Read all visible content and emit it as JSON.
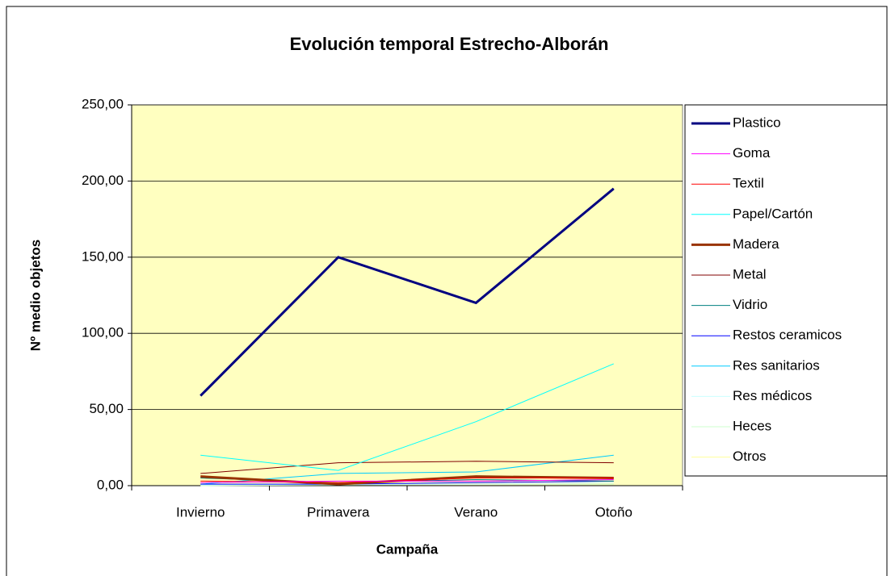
{
  "chart_data": {
    "type": "line",
    "title": "Evolución temporal Estrecho-Alborán",
    "x_label": "Campaña",
    "y_label": "Nº medio objetos",
    "categories": [
      "Invierno",
      "Primavera",
      "Verano",
      "Otoño"
    ],
    "ylim": [
      0,
      250
    ],
    "yticks": [
      {
        "value": 0,
        "label": "0,00"
      },
      {
        "value": 50,
        "label": "50,00"
      },
      {
        "value": 100,
        "label": "100,00"
      },
      {
        "value": 150,
        "label": "150,00"
      },
      {
        "value": 200,
        "label": "200,00"
      },
      {
        "value": 250,
        "label": "250,00"
      }
    ],
    "grid": true,
    "legend": "right",
    "series": [
      {
        "name": "Plastico",
        "color": "#000080",
        "line_width": 3,
        "values": [
          59,
          150,
          120,
          195
        ]
      },
      {
        "name": "Goma",
        "color": "#ff00ff",
        "line_width": 1,
        "values": [
          2,
          3,
          3,
          4
        ]
      },
      {
        "name": "Textil",
        "color": "#ff0000",
        "line_width": 1,
        "values": [
          3,
          2,
          5,
          5
        ]
      },
      {
        "name": "Papel/Cartón",
        "color": "#00ffff",
        "line_width": 1,
        "values": [
          20,
          10,
          42,
          80
        ]
      },
      {
        "name": "Madera",
        "color": "#993300",
        "line_width": 3,
        "values": [
          6,
          1,
          6,
          5
        ]
      },
      {
        "name": "Metal",
        "color": "#800000",
        "line_width": 1,
        "values": [
          8,
          15,
          16,
          15
        ]
      },
      {
        "name": "Vidrio",
        "color": "#008080",
        "line_width": 1,
        "values": [
          5,
          2,
          4,
          3
        ]
      },
      {
        "name": "Restos ceramicos",
        "color": "#0000ff",
        "line_width": 1,
        "values": [
          1,
          1,
          2,
          3
        ]
      },
      {
        "name": "Res sanitarios",
        "color": "#00ccff",
        "line_width": 1,
        "values": [
          1,
          8,
          9,
          20
        ]
      },
      {
        "name": "Res médicos",
        "color": "#ccffff",
        "line_width": 1,
        "values": [
          0.5,
          1,
          1,
          2
        ]
      },
      {
        "name": "Heces",
        "color": "#ccffcc",
        "line_width": 1,
        "values": [
          0,
          0.5,
          1,
          1
        ]
      },
      {
        "name": "Otros",
        "color": "#ffff99",
        "line_width": 1,
        "values": [
          0.5,
          1,
          1,
          1
        ]
      }
    ]
  }
}
